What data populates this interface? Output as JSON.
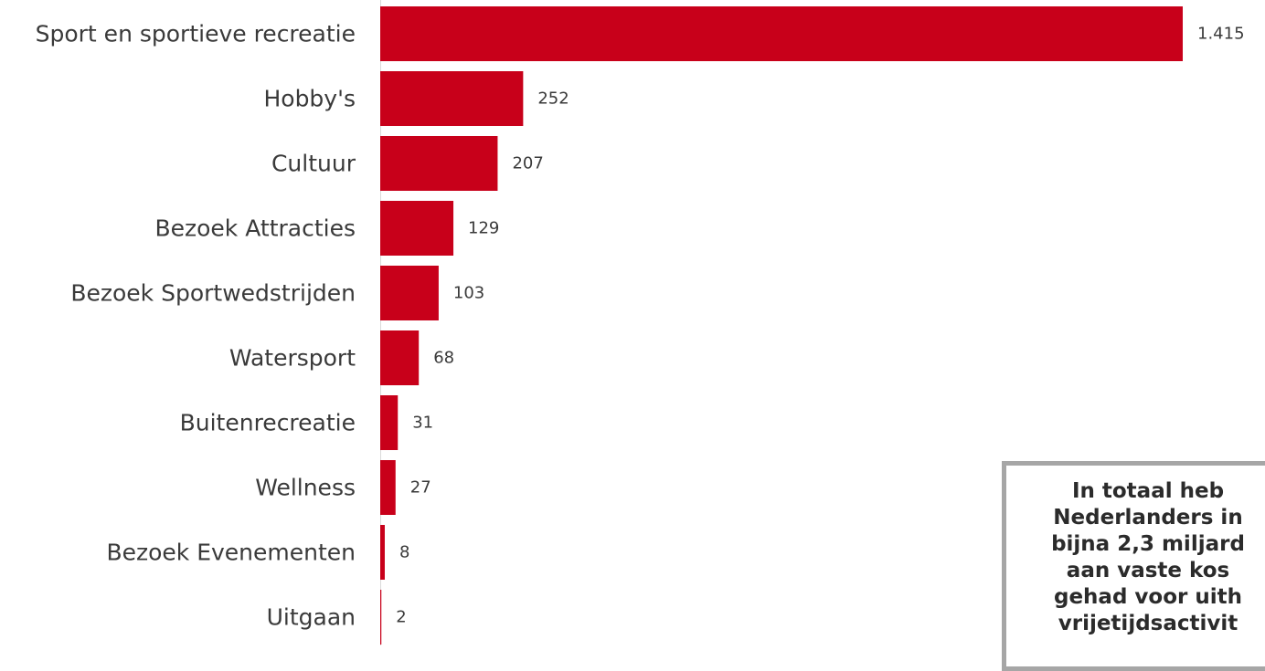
{
  "chart_data": {
    "type": "bar",
    "orientation": "horizontal",
    "categories": [
      "Sport en sportieve recreatie",
      "Hobby's",
      "Cultuur",
      "Bezoek Attracties",
      "Bezoek Sportwedstrijden",
      "Watersport",
      "Buitenrecreatie",
      "Wellness",
      "Bezoek Evenementen",
      "Uitgaan"
    ],
    "values": [
      1415,
      252,
      207,
      129,
      103,
      68,
      31,
      27,
      8,
      2
    ],
    "value_labels": [
      "1.415",
      "252",
      "207",
      "129",
      "103",
      "68",
      "31",
      "27",
      "8",
      "2"
    ],
    "xlim": [
      0,
      1415
    ],
    "grid": false,
    "legend": "none",
    "bar_color": "#c8001a"
  },
  "callout": {
    "text": "In totaal heb\nNederlanders in\nbijna 2,3 miljard\naan vaste kos\ngehad voor uith\nvrijetijdsactivit"
  }
}
